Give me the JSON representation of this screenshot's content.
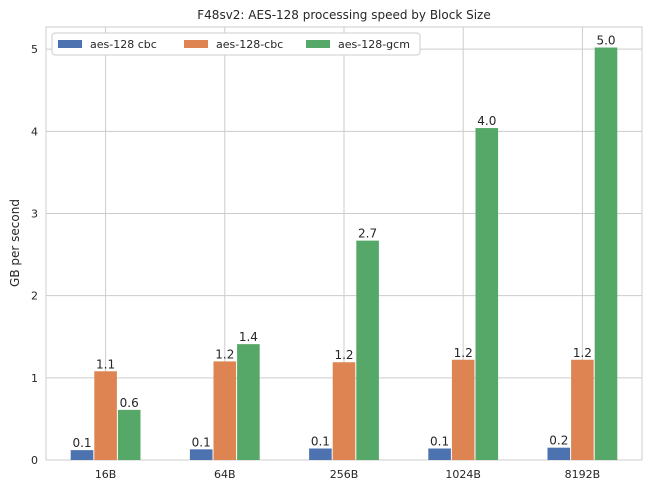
{
  "chart_data": {
    "type": "bar",
    "title": "F48sv2: AES-128 processing speed by Block Size",
    "xlabel": "",
    "ylabel": "GB per second",
    "categories": [
      "16B",
      "64B",
      "256B",
      "1024B",
      "8192B"
    ],
    "series": [
      {
        "name": "aes-128 cbc",
        "color": "#4c72b0",
        "values": [
          0.12,
          0.13,
          0.14,
          0.14,
          0.15
        ],
        "labels": [
          "0.1",
          "0.1",
          "0.1",
          "0.1",
          "0.2"
        ]
      },
      {
        "name": "aes-128-cbc",
        "color": "#dd8452",
        "values": [
          1.08,
          1.2,
          1.19,
          1.22,
          1.22
        ],
        "labels": [
          "1.1",
          "1.2",
          "1.2",
          "1.2",
          "1.2"
        ]
      },
      {
        "name": "aes-128-gcm",
        "color": "#55a868",
        "values": [
          0.61,
          1.41,
          2.67,
          4.04,
          5.02
        ],
        "labels": [
          "0.6",
          "1.4",
          "2.7",
          "4.0",
          "5.0"
        ]
      }
    ],
    "ylim": [
      0,
      5.27
    ],
    "yticks": [
      0,
      1,
      2,
      3,
      4,
      5
    ],
    "grid": true,
    "legend_position": "top-left"
  }
}
